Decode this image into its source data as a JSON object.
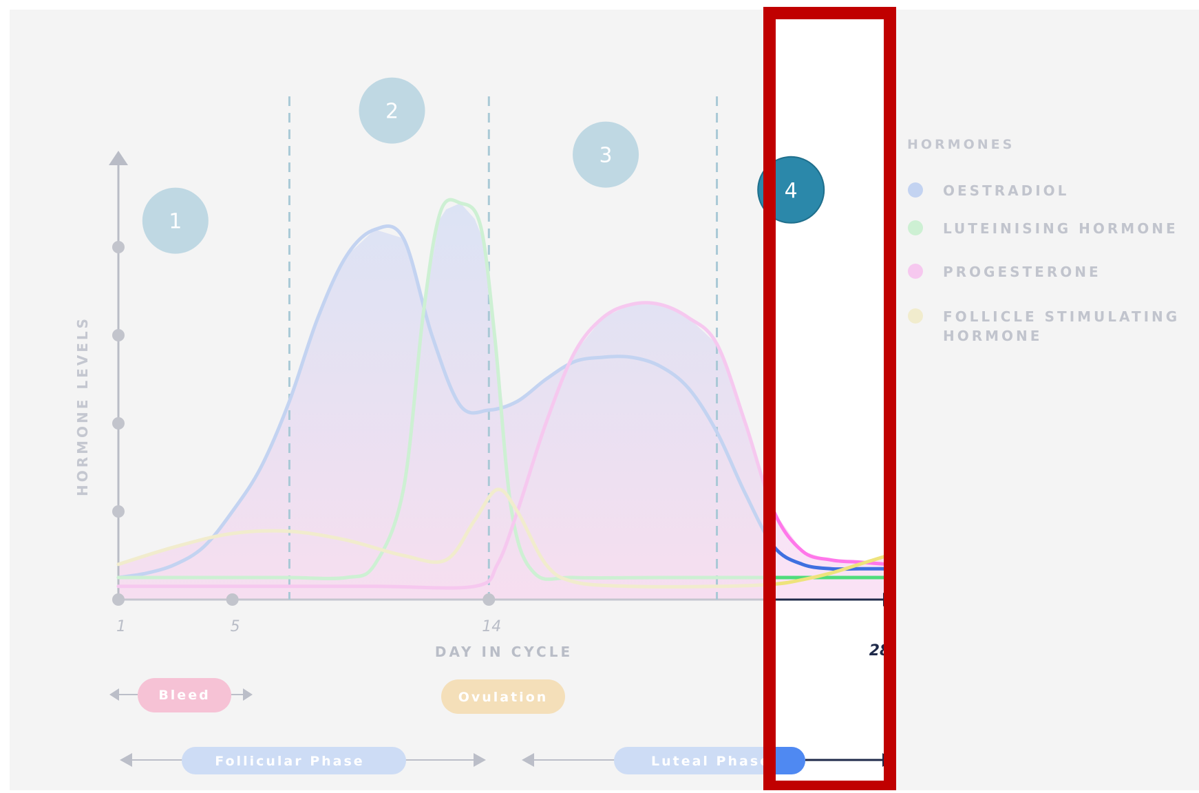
{
  "chart_data": {
    "type": "line",
    "xlabel": "DAY IN CYCLE",
    "ylabel": "HORMONE LEVELS",
    "xlim": [
      1,
      28
    ],
    "ylim": [
      0,
      100
    ],
    "x_ticks": [
      {
        "day": 1,
        "label": "1"
      },
      {
        "day": 5,
        "label": "5"
      },
      {
        "day": 14,
        "label": "14"
      },
      {
        "day": 28,
        "label": "28"
      }
    ],
    "y_ticks": [
      20,
      40,
      60,
      80
    ],
    "dividers_day": [
      7,
      14,
      22
    ],
    "legend_title": "HORMONES",
    "legend_position": "right",
    "stages": [
      {
        "label": "1",
        "day": 3,
        "level": 86
      },
      {
        "label": "2",
        "day": 10.6,
        "level": 111
      },
      {
        "label": "3",
        "day": 18.1,
        "level": 101
      },
      {
        "label": "4",
        "day": 24.6,
        "level": 93,
        "highlighted": true
      }
    ],
    "series": [
      {
        "name": "OESTRADIOL",
        "color": "#3f70e0",
        "faded": "#c3d3f1",
        "points": [
          [
            1,
            5
          ],
          [
            2,
            6
          ],
          [
            3,
            8
          ],
          [
            4,
            12
          ],
          [
            5,
            20
          ],
          [
            6,
            30
          ],
          [
            7,
            45
          ],
          [
            8,
            64
          ],
          [
            9,
            78
          ],
          [
            10,
            84
          ],
          [
            11,
            82
          ],
          [
            12,
            60
          ],
          [
            13,
            44
          ],
          [
            14,
            43
          ],
          [
            15,
            45
          ],
          [
            16,
            50
          ],
          [
            17,
            54
          ],
          [
            18,
            55
          ],
          [
            19,
            55
          ],
          [
            20,
            53
          ],
          [
            21,
            48
          ],
          [
            22,
            38
          ],
          [
            23,
            24
          ],
          [
            24,
            12
          ],
          [
            25,
            8
          ],
          [
            26,
            7
          ],
          [
            27,
            7
          ],
          [
            28,
            7
          ]
        ]
      },
      {
        "name": "LUTEINISING HORMONE",
        "color": "#4fdc7c",
        "faded": "#cdf0d3",
        "points": [
          [
            1,
            5
          ],
          [
            3,
            5
          ],
          [
            5,
            5
          ],
          [
            7,
            5
          ],
          [
            9,
            5
          ],
          [
            10,
            8
          ],
          [
            11,
            25
          ],
          [
            11.7,
            65
          ],
          [
            12.3,
            88
          ],
          [
            13,
            90
          ],
          [
            13.7,
            85
          ],
          [
            14.2,
            60
          ],
          [
            14.8,
            20
          ],
          [
            15.6,
            6
          ],
          [
            17,
            5
          ],
          [
            20,
            5
          ],
          [
            24,
            5
          ],
          [
            28,
            5
          ]
        ]
      },
      {
        "name": "PROGESTERONE",
        "color": "#ff77ea",
        "faded": "#f6c8ef",
        "points": [
          [
            1,
            3
          ],
          [
            5,
            3
          ],
          [
            10,
            3
          ],
          [
            13.5,
            3
          ],
          [
            14.3,
            8
          ],
          [
            15,
            20
          ],
          [
            16,
            40
          ],
          [
            17,
            56
          ],
          [
            18,
            64
          ],
          [
            19,
            67
          ],
          [
            20,
            67
          ],
          [
            21,
            64
          ],
          [
            22,
            58
          ],
          [
            23,
            40
          ],
          [
            24,
            20
          ],
          [
            25,
            11
          ],
          [
            26,
            9
          ],
          [
            27,
            8.5
          ],
          [
            28,
            8
          ]
        ]
      },
      {
        "name": "FOLLICLE STIMULATING HORMONE",
        "color": "#eee37c",
        "faded": "#f1eccd",
        "points": [
          [
            1,
            8
          ],
          [
            3,
            12
          ],
          [
            5,
            15
          ],
          [
            7,
            15.5
          ],
          [
            9,
            13.5
          ],
          [
            11,
            10
          ],
          [
            12.5,
            9
          ],
          [
            13.5,
            18
          ],
          [
            14.3,
            25
          ],
          [
            15,
            20
          ],
          [
            16,
            8
          ],
          [
            17,
            4
          ],
          [
            19,
            3
          ],
          [
            22,
            3
          ],
          [
            24,
            3.5
          ],
          [
            25,
            4.5
          ],
          [
            26,
            6
          ],
          [
            27,
            8
          ],
          [
            28,
            10
          ]
        ]
      }
    ]
  },
  "bleed_label": "Bleed",
  "ovulation_label": "Ovulation",
  "follicular_label": "Follicular Phase",
  "luteal_label": "Luteal Phase",
  "colors": {
    "bleed": "#f6c2d5",
    "ovulation": "#f4dfb9",
    "phase_faded": "#cddcf5",
    "phase_active": "#4f89f2",
    "stage_faded": "#bfd8e3",
    "stage_active": "#2b88aa",
    "highlight_box": "#c00000",
    "dark_axis": "#1f2a4a"
  }
}
